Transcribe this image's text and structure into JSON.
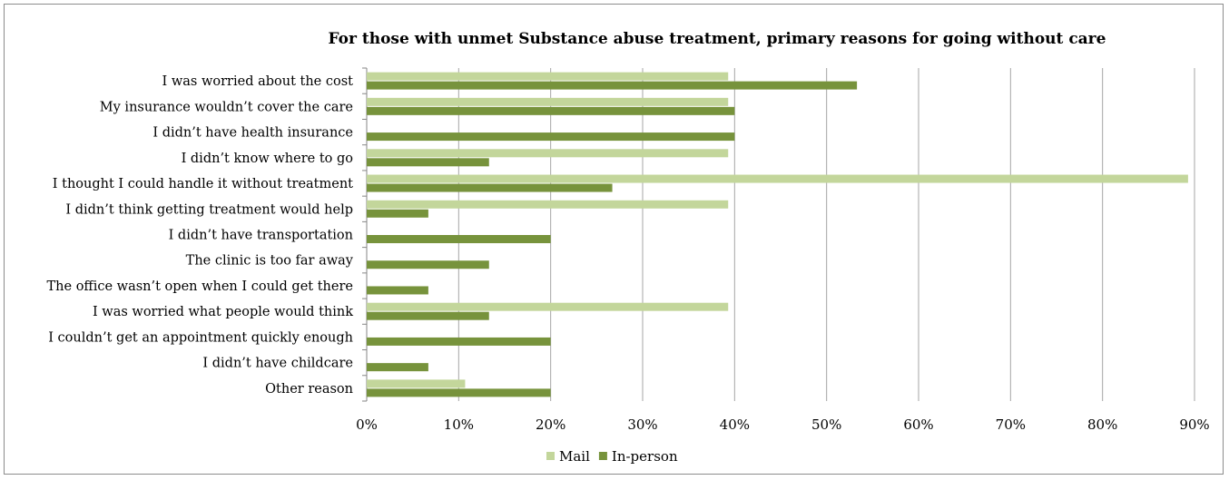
{
  "chart_data": {
    "type": "bar",
    "orientation": "horizontal",
    "title": "For those with unmet Substance abuse treatment, primary reasons for going without care",
    "categories": [
      "I was worried about the cost",
      "My insurance wouldn’t cover the care",
      "I didn’t have health insurance",
      "I didn’t know where to go",
      "I thought I could handle it without treatment",
      "I didn’t think getting treatment would help",
      "I didn’t have transportation",
      "The clinic is too far away",
      "The office wasn’t open when I could get there",
      "I was worried what people would think",
      "I couldn’t get an appointment quickly enough",
      "I didn’t have childcare",
      "Other reason"
    ],
    "series": [
      {
        "name": "Mail",
        "color": "#c3d69b",
        "values": [
          39.3,
          39.3,
          0,
          39.3,
          89.3,
          39.3,
          0,
          0,
          0,
          39.3,
          0,
          0,
          10.7
        ]
      },
      {
        "name": "In-person",
        "color": "#77933c",
        "values": [
          53.3,
          40.0,
          40.0,
          13.3,
          26.7,
          6.7,
          20.0,
          13.3,
          6.7,
          13.3,
          20.0,
          6.7,
          20.0
        ]
      }
    ],
    "xlim": [
      0,
      90
    ],
    "xticks": [
      0,
      10,
      20,
      30,
      40,
      50,
      60,
      70,
      80,
      90
    ],
    "tick_labels": [
      "0%",
      "10%",
      "20%",
      "30%",
      "40%",
      "50%",
      "60%",
      "70%",
      "80%",
      "90%"
    ],
    "grid": true,
    "legend_position": "bottom"
  }
}
